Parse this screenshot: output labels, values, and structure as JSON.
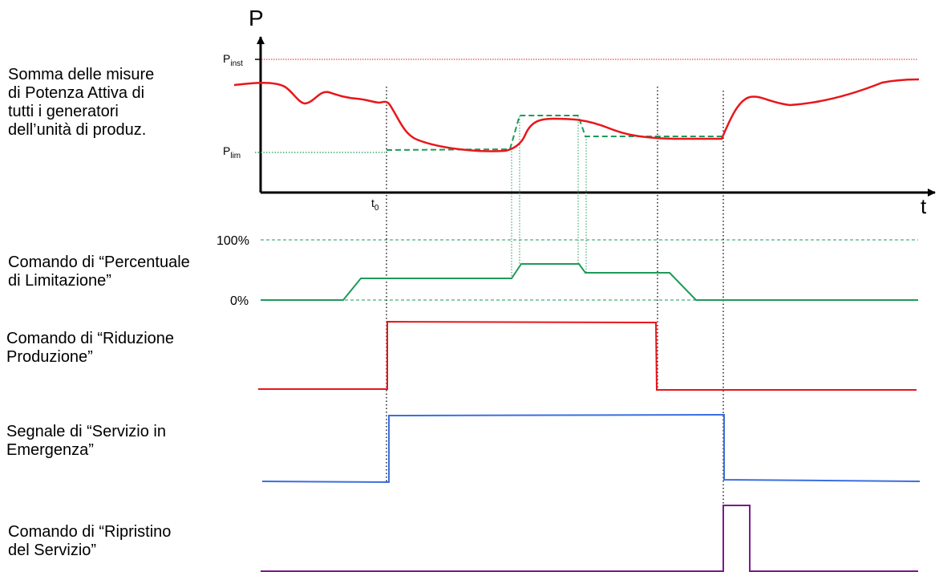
{
  "labels": {
    "active_power": [
      "Somma delle misure",
      "di Potenza Attiva di",
      "tutti i generatori",
      "dell’unità di produz."
    ],
    "limit_percentage": [
      "Comando di “Percentuale",
      "di Limitazione”"
    ],
    "production_reduction": [
      "Comando di “Riduzione",
      "Produzione”"
    ],
    "emergency_service": [
      "Segnale di “Servizio in",
      "Emergenza”"
    ],
    "service_restore": [
      "Comando di “Ripristino",
      "del Servizio”"
    ]
  },
  "axes": {
    "y_label": "P",
    "x_label": "t",
    "p_inst": {
      "main": "P",
      "sub": "inst"
    },
    "p_lim": {
      "main": "P",
      "sub": "lim"
    },
    "t0": {
      "main": "t",
      "sub": "0"
    },
    "pct_100": "100%",
    "pct_0": "0%"
  },
  "colors": {
    "power_curve": "#e8161b",
    "limit_command": "#1e9a5a",
    "p_inst_line": "#e8161b",
    "reduction_command": "#e8161b",
    "emergency_signal": "#3b6fe0",
    "restore_command": "#7a1a8c",
    "markers": "#000000"
  }
}
